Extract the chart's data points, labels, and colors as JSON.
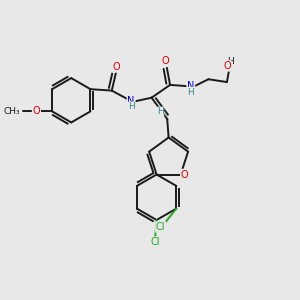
{
  "bg_color": "#e8e8e8",
  "bond_color": "#1a1a1a",
  "atom_colors": {
    "O": "#dd0000",
    "N": "#0000cc",
    "H": "#338888",
    "Cl": "#22aa22",
    "C": "#1a1a1a"
  }
}
